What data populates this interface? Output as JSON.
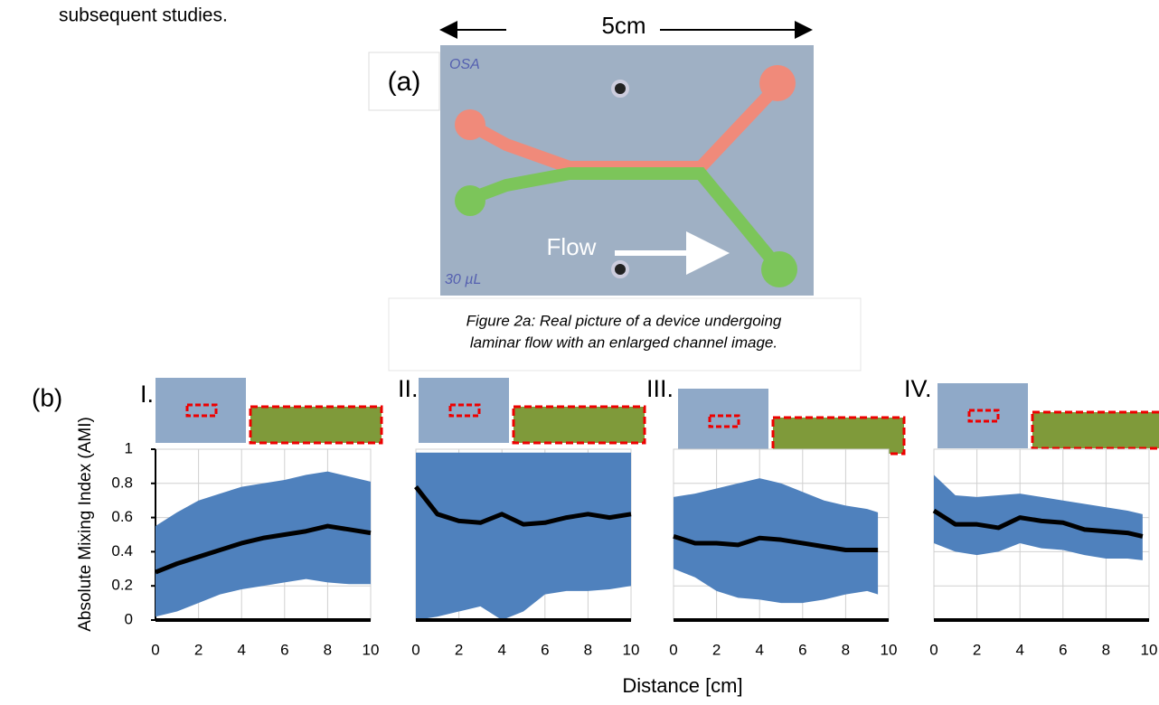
{
  "text": "subsequent studies.",
  "figure_a": {
    "label": "(a)",
    "scale": "5cm",
    "flow": "Flow",
    "note_top": "OSA",
    "note_bottom": "30 µL",
    "caption": [
      "Figure 2a: Real picture of a device undergoing",
      "laminar flow with an enlarged channel image."
    ]
  },
  "figure_b": {
    "label": "(b)",
    "y_label": "Absolute Mixing Index (AMI)",
    "x_label": "Distance [cm]"
  },
  "chart_data": [
    {
      "type": "line",
      "title": "I.",
      "x": [
        0,
        1,
        2,
        3,
        4,
        5,
        6,
        7,
        8,
        9,
        10
      ],
      "values": [
        0.28,
        0.33,
        0.37,
        0.41,
        0.45,
        0.48,
        0.5,
        0.52,
        0.55,
        0.53,
        0.51
      ],
      "upper": [
        0.55,
        0.63,
        0.7,
        0.74,
        0.78,
        0.8,
        0.82,
        0.85,
        0.87,
        0.84,
        0.81
      ],
      "lower": [
        0.02,
        0.05,
        0.1,
        0.15,
        0.18,
        0.2,
        0.22,
        0.24,
        0.22,
        0.21,
        0.21
      ],
      "color": "#000000",
      "band_color": "#4f81bd",
      "xlim": [
        0,
        10
      ],
      "ylim": [
        0,
        1
      ],
      "xticks": [
        0,
        2,
        4,
        6,
        8,
        10
      ],
      "yticks": [
        0,
        0.2,
        0.4,
        0.6,
        0.8,
        1
      ],
      "show_ytick_labels": true,
      "grid": true
    },
    {
      "type": "line",
      "title": "II.",
      "x": [
        0,
        1,
        2,
        3,
        4,
        5,
        6,
        7,
        8,
        9,
        10
      ],
      "values": [
        0.78,
        0.62,
        0.58,
        0.57,
        0.62,
        0.56,
        0.57,
        0.6,
        0.62,
        0.6,
        0.62
      ],
      "upper": [
        0.98,
        0.98,
        0.98,
        0.98,
        0.98,
        0.98,
        0.98,
        0.98,
        0.98,
        0.98,
        0.98
      ],
      "lower": [
        0,
        0.02,
        0.05,
        0.08,
        0,
        0.05,
        0.15,
        0.17,
        0.17,
        0.18,
        0.2
      ],
      "color": "#000000",
      "band_color": "#4f81bd",
      "xlim": [
        0,
        10
      ],
      "ylim": [
        0,
        1
      ],
      "xticks": [
        0,
        2,
        4,
        6,
        8,
        10
      ],
      "yticks": [
        0,
        0.2,
        0.4,
        0.6,
        0.8,
        1
      ],
      "show_ytick_labels": false,
      "grid": true
    },
    {
      "type": "line",
      "title": "III.",
      "x": [
        0,
        1,
        2,
        3,
        4,
        5,
        6,
        7,
        8,
        9,
        9.5
      ],
      "values": [
        0.49,
        0.45,
        0.45,
        0.44,
        0.48,
        0.47,
        0.45,
        0.43,
        0.41,
        0.41,
        0.41
      ],
      "upper": [
        0.72,
        0.74,
        0.77,
        0.8,
        0.83,
        0.8,
        0.75,
        0.7,
        0.67,
        0.65,
        0.63
      ],
      "lower": [
        0.3,
        0.25,
        0.17,
        0.13,
        0.12,
        0.1,
        0.1,
        0.12,
        0.15,
        0.17,
        0.15
      ],
      "color": "#000000",
      "band_color": "#4f81bd",
      "xlim": [
        0,
        10
      ],
      "ylim": [
        0,
        1
      ],
      "xticks": [
        0,
        2,
        4,
        6,
        8,
        10
      ],
      "yticks": [
        0,
        0.2,
        0.4,
        0.6,
        0.8,
        1
      ],
      "show_ytick_labels": false,
      "grid": true
    },
    {
      "type": "line",
      "title": "IV.",
      "x": [
        0,
        1,
        2,
        3,
        4,
        5,
        6,
        7,
        8,
        9,
        9.7
      ],
      "values": [
        0.64,
        0.56,
        0.56,
        0.54,
        0.6,
        0.58,
        0.57,
        0.53,
        0.52,
        0.51,
        0.49
      ],
      "upper": [
        0.85,
        0.73,
        0.72,
        0.73,
        0.74,
        0.72,
        0.7,
        0.68,
        0.66,
        0.64,
        0.62
      ],
      "lower": [
        0.45,
        0.4,
        0.38,
        0.4,
        0.45,
        0.42,
        0.41,
        0.38,
        0.36,
        0.36,
        0.35
      ],
      "color": "#000000",
      "band_color": "#4f81bd",
      "xlim": [
        0,
        10
      ],
      "ylim": [
        0,
        1
      ],
      "xticks": [
        0,
        2,
        4,
        6,
        8,
        10
      ],
      "yticks": [
        0,
        0.2,
        0.4,
        0.6,
        0.8,
        1
      ],
      "show_ytick_labels": false,
      "grid": true
    }
  ]
}
